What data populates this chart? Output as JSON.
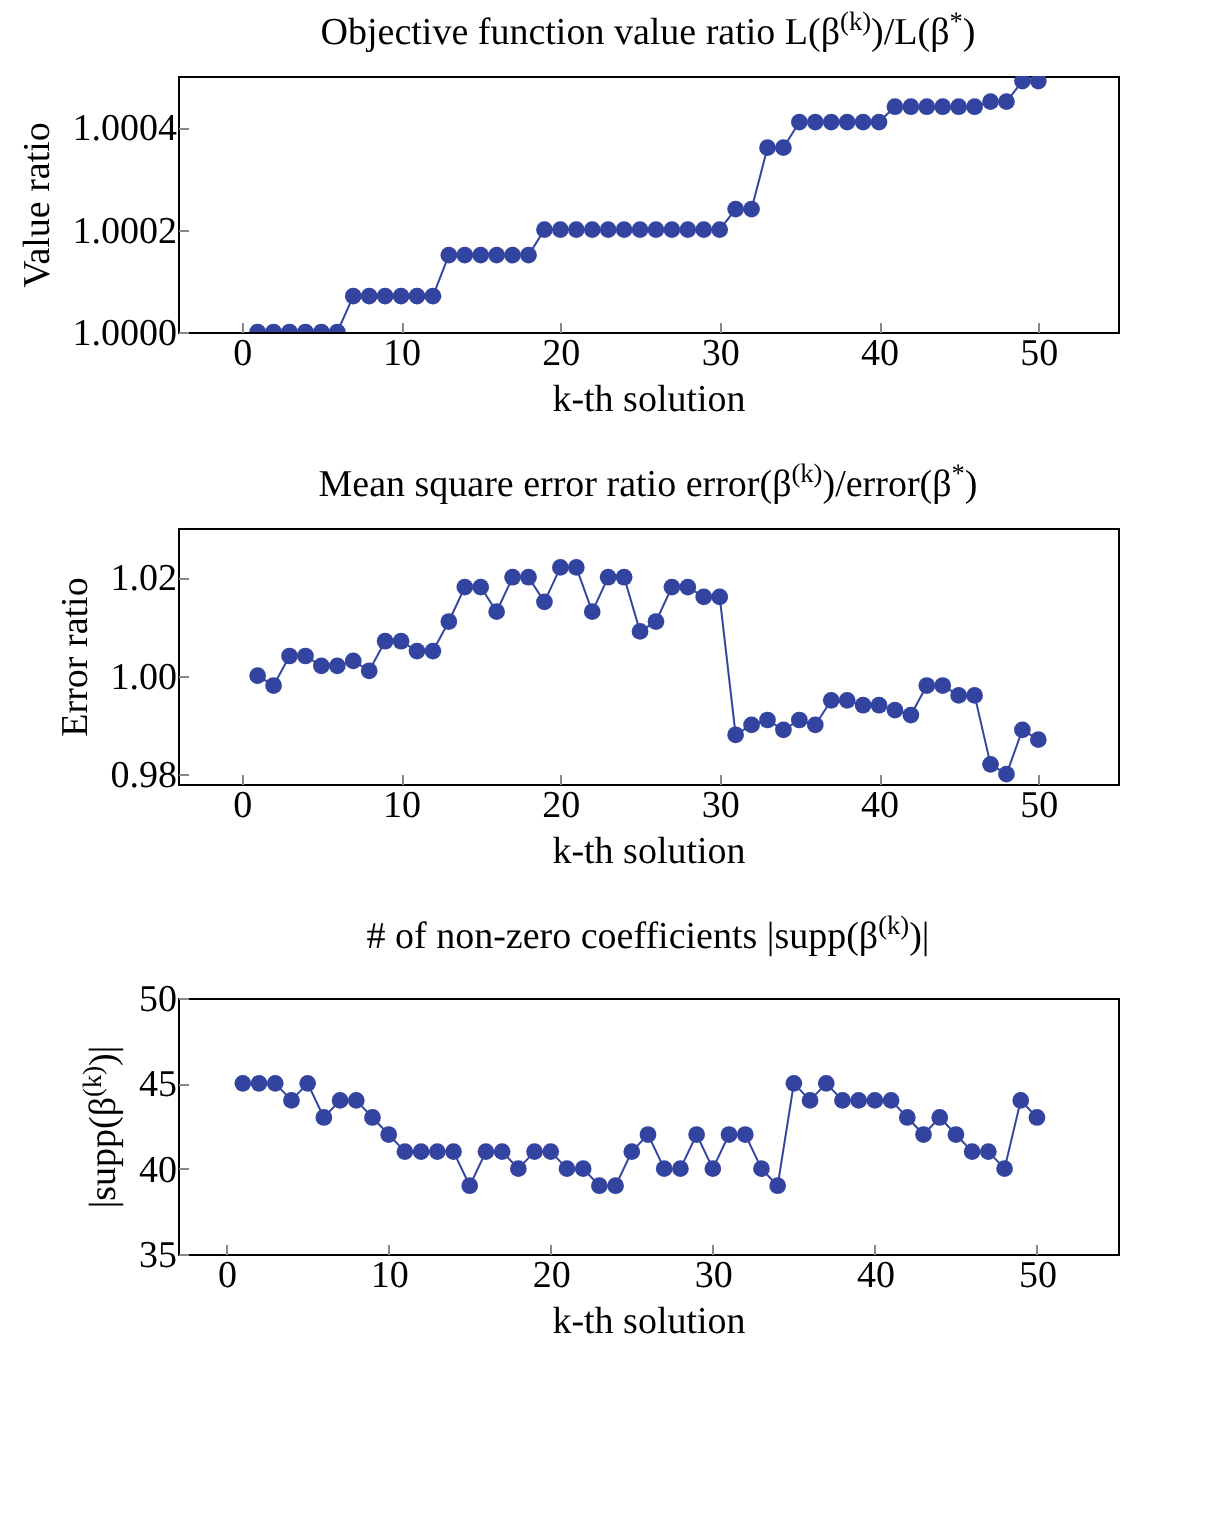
{
  "chart_data": [
    {
      "type": "line",
      "title": "Objective function value ratio L(β$^{(k)}$)/L(β$^{*}$)",
      "xlabel": "k-th solution",
      "ylabel": "Value ratio",
      "marker": "circle",
      "grid": false,
      "x": [
        1,
        2,
        3,
        4,
        5,
        6,
        7,
        8,
        9,
        10,
        11,
        12,
        13,
        14,
        15,
        16,
        17,
        18,
        19,
        20,
        21,
        22,
        23,
        24,
        25,
        26,
        27,
        28,
        29,
        30,
        31,
        32,
        33,
        34,
        35,
        36,
        37,
        38,
        39,
        40,
        41,
        42,
        43,
        44,
        45,
        46,
        47,
        48,
        49,
        50
      ],
      "series": [
        {
          "color": "#3344a0",
          "values": [
            1.0,
            1.0,
            1.0,
            1.0,
            1.0,
            1.0,
            1.00007,
            1.00007,
            1.00007,
            1.00007,
            1.00007,
            1.00007,
            1.00015,
            1.00015,
            1.00015,
            1.00015,
            1.00015,
            1.00015,
            1.0002,
            1.0002,
            1.0002,
            1.0002,
            1.0002,
            1.0002,
            1.0002,
            1.0002,
            1.0002,
            1.0002,
            1.0002,
            1.0002,
            1.00024,
            1.00024,
            1.00036,
            1.00036,
            1.00041,
            1.00041,
            1.00041,
            1.00041,
            1.00041,
            1.00041,
            1.00044,
            1.00044,
            1.00044,
            1.00044,
            1.00044,
            1.00044,
            1.00045,
            1.00045,
            1.00049,
            1.00049
          ]
        }
      ],
      "xlim": [
        -4,
        55
      ],
      "xticks": [
        0,
        10,
        20,
        30,
        40,
        50
      ],
      "ylim": [
        1.0,
        1.0005
      ],
      "yticks": [
        {
          "value": 1.0,
          "label": "1.0000"
        },
        {
          "value": 1.0002,
          "label": "1.0002"
        },
        {
          "value": 1.0004,
          "label": "1.0004"
        }
      ]
    },
    {
      "type": "line",
      "title": "Mean square error ratio error(β$^{(k)}$)/error(β$^{*}$)",
      "xlabel": "k-th solution",
      "ylabel": "Error ratio",
      "marker": "circle",
      "grid": false,
      "x": [
        1,
        2,
        3,
        4,
        5,
        6,
        7,
        8,
        9,
        10,
        11,
        12,
        13,
        14,
        15,
        16,
        17,
        18,
        19,
        20,
        21,
        22,
        23,
        24,
        25,
        26,
        27,
        28,
        29,
        30,
        31,
        32,
        33,
        34,
        35,
        36,
        37,
        38,
        39,
        40,
        41,
        42,
        43,
        44,
        45,
        46,
        47,
        48,
        49,
        50
      ],
      "series": [
        {
          "color": "#3344a0",
          "values": [
            1.0,
            0.998,
            1.004,
            1.004,
            1.002,
            1.002,
            1.003,
            1.001,
            1.007,
            1.007,
            1.005,
            1.005,
            1.011,
            1.018,
            1.018,
            1.013,
            1.02,
            1.02,
            1.015,
            1.022,
            1.022,
            1.013,
            1.02,
            1.02,
            1.009,
            1.011,
            1.018,
            1.018,
            1.016,
            1.016,
            0.988,
            0.99,
            0.991,
            0.989,
            0.991,
            0.99,
            0.995,
            0.995,
            0.994,
            0.994,
            0.993,
            0.992,
            0.998,
            0.998,
            0.996,
            0.996,
            0.982,
            0.98,
            0.989,
            0.987
          ]
        }
      ],
      "xlim": [
        -4,
        55
      ],
      "xticks": [
        0,
        10,
        20,
        30,
        40,
        50
      ],
      "ylim": [
        0.978,
        1.03
      ],
      "yticks": [
        {
          "value": 0.98,
          "label": "0.98"
        },
        {
          "value": 1.0,
          "label": "1.00"
        },
        {
          "value": 1.02,
          "label": "1.02"
        }
      ]
    },
    {
      "type": "line",
      "title": "# of non-zero coefficients |supp(β$^{(k)}$)|",
      "xlabel": "k-th solution",
      "ylabel": "|supp(β$^{(k)}$)|",
      "marker": "circle",
      "grid": false,
      "x": [
        1,
        2,
        3,
        4,
        5,
        6,
        7,
        8,
        9,
        10,
        11,
        12,
        13,
        14,
        15,
        16,
        17,
        18,
        19,
        20,
        21,
        22,
        23,
        24,
        25,
        26,
        27,
        28,
        29,
        30,
        31,
        32,
        33,
        34,
        35,
        36,
        37,
        38,
        39,
        40,
        41,
        42,
        43,
        44,
        45,
        46,
        47,
        48,
        49,
        50
      ],
      "series": [
        {
          "color": "#3344a0",
          "values": [
            45,
            45,
            45,
            44,
            45,
            43,
            44,
            44,
            43,
            42,
            41,
            41,
            41,
            41,
            39,
            41,
            41,
            40,
            41,
            41,
            40,
            40,
            39,
            39,
            41,
            42,
            40,
            40,
            42,
            40,
            42,
            42,
            40,
            39,
            45,
            44,
            45,
            44,
            44,
            44,
            44,
            43,
            42,
            43,
            42,
            41,
            41,
            40,
            44,
            43
          ]
        }
      ],
      "xlim": [
        -3,
        55
      ],
      "xticks": [
        0,
        10,
        20,
        30,
        40,
        50
      ],
      "ylim": [
        35,
        50
      ],
      "yticks": [
        35,
        40,
        45,
        50
      ]
    }
  ]
}
